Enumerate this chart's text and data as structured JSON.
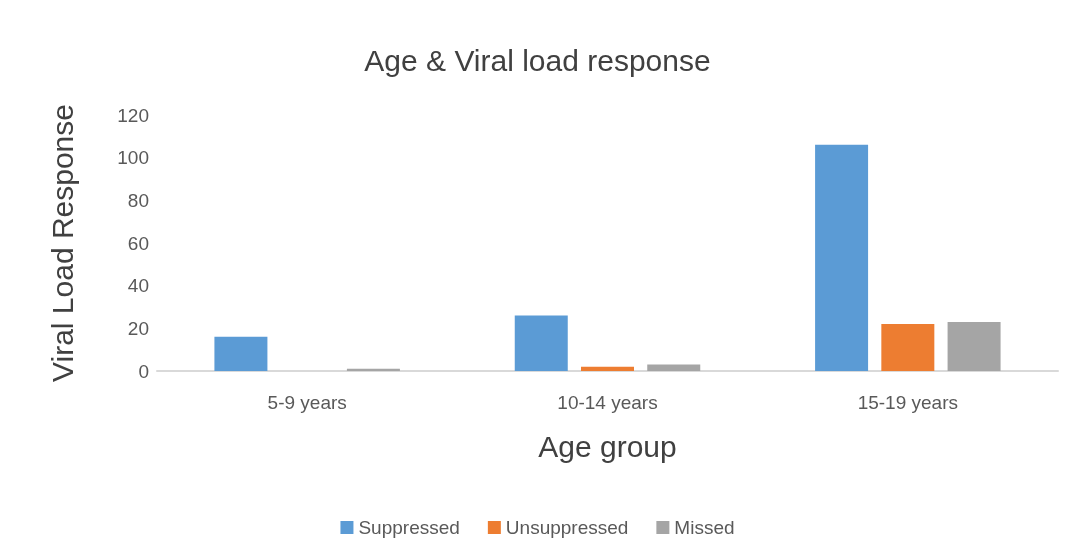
{
  "chart_data": {
    "type": "bar",
    "title": "Age & Viral load response",
    "xlabel": "Age group",
    "ylabel": "Viral Load Response",
    "categories": [
      "5-9 years",
      "10-14 years",
      "15-19 years"
    ],
    "series": [
      {
        "name": "Suppressed",
        "color": "#5b9bd5",
        "values": [
          16,
          26,
          106
        ]
      },
      {
        "name": "Unsuppressed",
        "color": "#ed7d31",
        "values": [
          0,
          2,
          22
        ]
      },
      {
        "name": "Missed",
        "color": "#a5a5a5",
        "values": [
          1,
          3,
          23
        ]
      }
    ],
    "ylim": [
      0,
      120
    ],
    "yticks": [
      0,
      20,
      40,
      60,
      80,
      100,
      120
    ],
    "grid": false,
    "legend": "bottom"
  }
}
